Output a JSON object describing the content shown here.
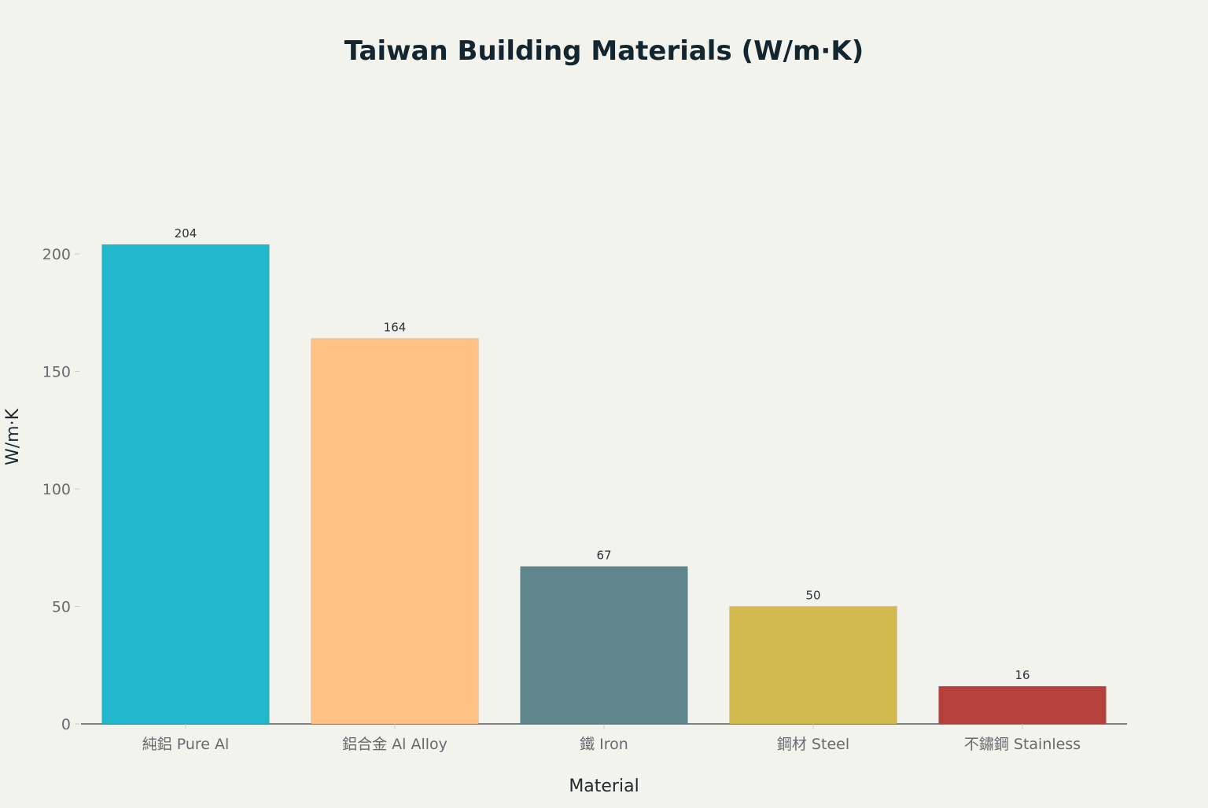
{
  "chart_data": {
    "type": "bar",
    "title": "Taiwan Building Materials (W/m·K)",
    "xlabel": "Material",
    "ylabel": "W/m·K",
    "categories": [
      "純鋁 Pure Al",
      "鋁合金 Al Alloy",
      "鐵 Iron",
      "鋼材 Steel",
      "不鏽鋼 Stainless"
    ],
    "values": [
      204,
      164,
      67,
      50,
      16
    ],
    "colors": [
      "#21b8cc",
      "#ffc186",
      "#5e868c",
      "#d3ba4e",
      "#b5403c"
    ],
    "ylim": [
      0,
      204
    ],
    "yticks": [
      0,
      50,
      100,
      150,
      200
    ],
    "grid": false,
    "legend": "none"
  }
}
